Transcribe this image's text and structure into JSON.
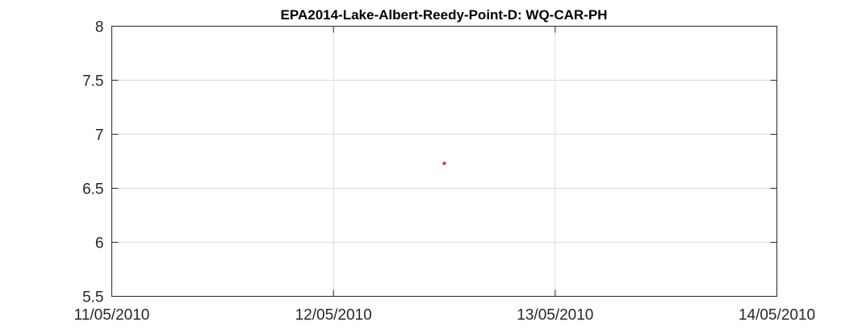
{
  "chart_data": {
    "type": "scatter",
    "title": "EPA2014-Lake-Albert-Reedy-Point-D: WQ-CAR-PH",
    "xlabel": "",
    "ylabel": "",
    "x_axis_type": "date",
    "xlim": [
      "11/05/2010",
      "14/05/2010"
    ],
    "ylim": [
      5.5,
      8
    ],
    "x_ticks": [
      "11/05/2010",
      "12/05/2010",
      "13/05/2010",
      "14/05/2010"
    ],
    "y_ticks": [
      "5.5",
      "6",
      "6.5",
      "7",
      "7.5",
      "8"
    ],
    "grid": true,
    "legend": "none",
    "series": [
      {
        "color": "#e8202a",
        "points": [
          {
            "x": "12/05/2010 12:00",
            "y": 6.73
          }
        ]
      }
    ]
  }
}
